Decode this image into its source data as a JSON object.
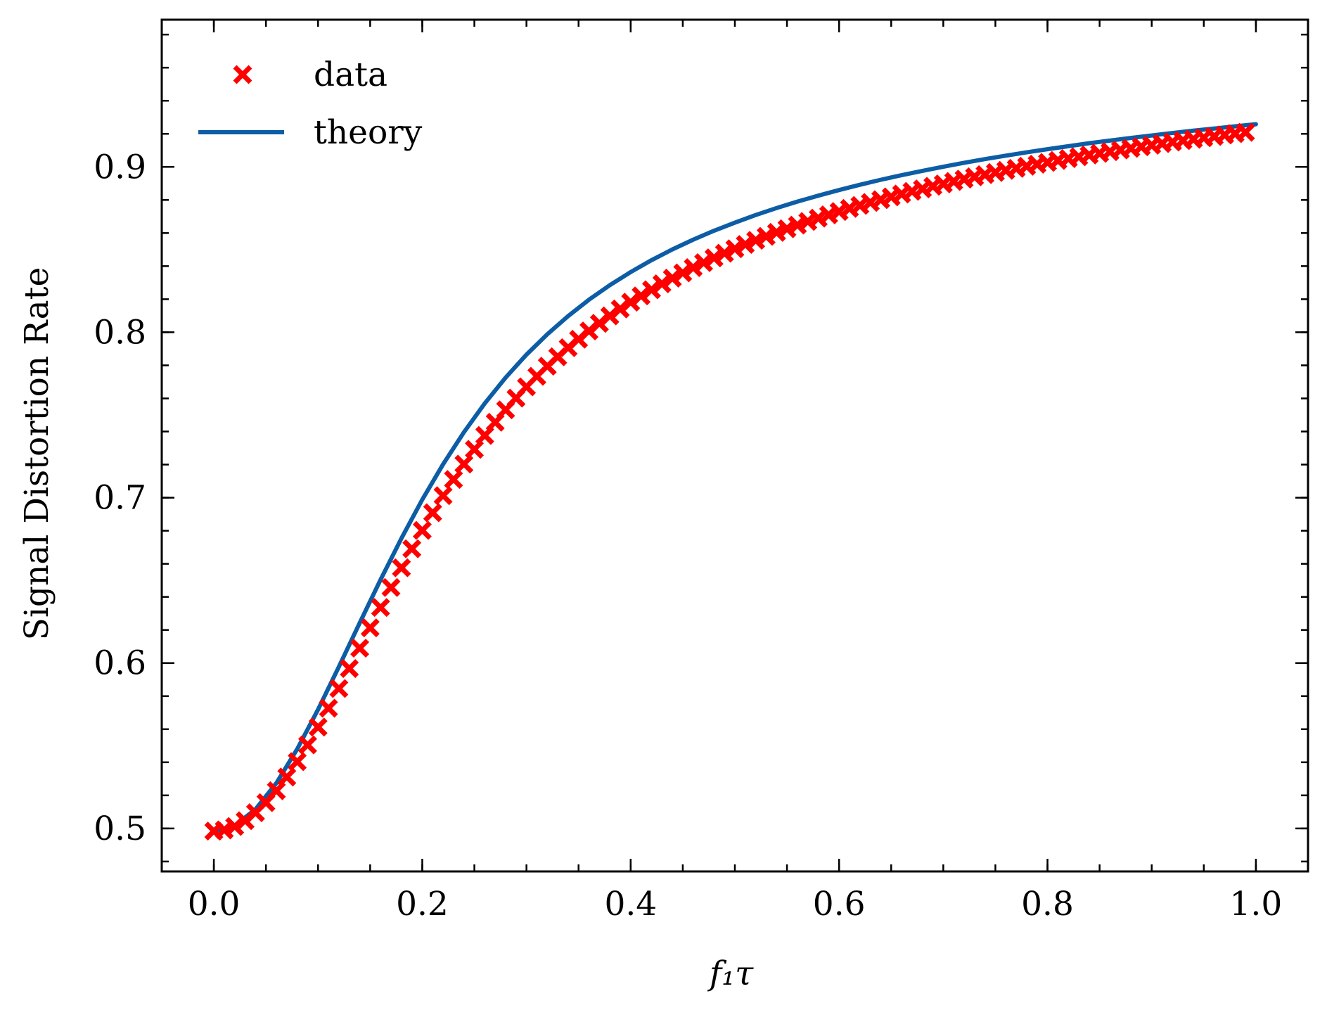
{
  "chart_data": {
    "type": "scatter",
    "xlabel": "f₁τ",
    "ylabel": "Signal Distortion Rate",
    "xlim": [
      -0.05,
      1.05
    ],
    "ylim": [
      0.474,
      0.989
    ],
    "xticks": [
      0.0,
      0.2,
      0.4,
      0.6,
      0.8,
      1.0
    ],
    "xtick_labels": [
      "0.0",
      "0.2",
      "0.4",
      "0.6",
      "0.8",
      "1.0"
    ],
    "yticks": [
      0.5,
      0.6,
      0.7,
      0.8,
      0.9
    ],
    "ytick_labels": [
      "0.5",
      "0.6",
      "0.7",
      "0.8",
      "0.9"
    ],
    "grid": false,
    "ticks_direction": "in, all four sides, with minor ticks",
    "legend": {
      "placement": "upper-left",
      "entries": [
        {
          "label": "data",
          "marker": "x",
          "color": "#ff0000"
        },
        {
          "label": "theory",
          "line": true,
          "color": "#0c5da5"
        }
      ]
    },
    "series": [
      {
        "name": "data",
        "kind": "scatter",
        "marker": "x",
        "color": "#ff0000",
        "x": [
          0.0,
          0.01,
          0.02,
          0.03,
          0.04,
          0.05,
          0.06,
          0.07,
          0.08,
          0.09,
          0.1,
          0.11,
          0.12,
          0.13,
          0.14,
          0.15,
          0.16,
          0.17,
          0.18,
          0.19,
          0.2,
          0.21,
          0.22,
          0.23,
          0.24,
          0.25,
          0.26,
          0.27,
          0.28,
          0.29,
          0.3,
          0.31,
          0.32,
          0.33,
          0.34,
          0.35,
          0.36,
          0.37,
          0.38,
          0.39,
          0.4,
          0.41,
          0.42,
          0.43,
          0.44,
          0.45,
          0.46,
          0.47,
          0.48,
          0.49,
          0.5,
          0.51,
          0.52,
          0.53,
          0.54,
          0.55,
          0.56,
          0.57,
          0.58,
          0.59,
          0.6,
          0.61,
          0.62,
          0.63,
          0.64,
          0.65,
          0.66,
          0.67,
          0.68,
          0.69,
          0.7,
          0.71,
          0.72,
          0.73,
          0.74,
          0.75,
          0.76,
          0.77,
          0.78,
          0.79,
          0.8,
          0.81,
          0.82,
          0.83,
          0.84,
          0.85,
          0.86,
          0.87,
          0.88,
          0.89,
          0.9,
          0.91,
          0.92,
          0.93,
          0.94,
          0.95,
          0.96,
          0.97,
          0.98,
          0.99
        ],
        "y": [
          0.4984,
          0.4991,
          0.5012,
          0.5047,
          0.5095,
          0.5156,
          0.5228,
          0.5311,
          0.5404,
          0.5505,
          0.5613,
          0.5727,
          0.5846,
          0.5967,
          0.609,
          0.6213,
          0.6336,
          0.6457,
          0.6576,
          0.6691,
          0.6802,
          0.6909,
          0.7012,
          0.711,
          0.7203,
          0.7292,
          0.7376,
          0.7456,
          0.7531,
          0.7602,
          0.767,
          0.7734,
          0.7795,
          0.7852,
          0.7907,
          0.7958,
          0.8008,
          0.8054,
          0.8099,
          0.8141,
          0.8182,
          0.822,
          0.8257,
          0.8293,
          0.8327,
          0.8359,
          0.8391,
          0.8421,
          0.845,
          0.8478,
          0.8505,
          0.8531,
          0.8556,
          0.858,
          0.8604,
          0.8626,
          0.8648,
          0.867,
          0.869,
          0.871,
          0.873,
          0.8749,
          0.8767,
          0.8785,
          0.8802,
          0.8819,
          0.8836,
          0.8852,
          0.8867,
          0.8883,
          0.8897,
          0.8912,
          0.8926,
          0.894,
          0.8953,
          0.8966,
          0.8979,
          0.8991,
          0.9004,
          0.9016,
          0.9027,
          0.9039,
          0.905,
          0.9061,
          0.9072,
          0.9082,
          0.9092,
          0.9102,
          0.9112,
          0.9122,
          0.9131,
          0.9141,
          0.915,
          0.9159,
          0.9167,
          0.9176,
          0.9184,
          0.9193,
          0.9201,
          0.9209
        ]
      },
      {
        "name": "theory",
        "kind": "line",
        "color": "#0c5da5",
        "x": [
          0.0,
          0.02,
          0.04,
          0.06,
          0.08,
          0.1,
          0.12,
          0.14,
          0.16,
          0.18,
          0.2,
          0.22,
          0.24,
          0.26,
          0.28,
          0.3,
          0.32,
          0.34,
          0.36,
          0.38,
          0.4,
          0.42,
          0.44,
          0.46,
          0.48,
          0.5,
          0.52,
          0.54,
          0.56,
          0.58,
          0.6,
          0.62,
          0.64,
          0.66,
          0.68,
          0.7,
          0.72,
          0.74,
          0.76,
          0.78,
          0.8,
          0.82,
          0.84,
          0.86,
          0.88,
          0.9,
          0.92,
          0.94,
          0.96,
          0.98,
          1.0
        ],
        "y": [
          0.4984,
          0.5017,
          0.5116,
          0.5274,
          0.548,
          0.5719,
          0.5978,
          0.6243,
          0.6504,
          0.6754,
          0.6988,
          0.7202,
          0.7396,
          0.757,
          0.7726,
          0.7865,
          0.7988,
          0.8098,
          0.8197,
          0.8285,
          0.8364,
          0.8436,
          0.8501,
          0.856,
          0.8614,
          0.8663,
          0.8709,
          0.8751,
          0.879,
          0.8826,
          0.886,
          0.8892,
          0.8922,
          0.895,
          0.8976,
          0.9001,
          0.9025,
          0.9047,
          0.9068,
          0.9088,
          0.9107,
          0.9125,
          0.9143,
          0.9159,
          0.9175,
          0.919,
          0.9205,
          0.9219,
          0.9232,
          0.9245,
          0.9258
        ]
      }
    ]
  }
}
